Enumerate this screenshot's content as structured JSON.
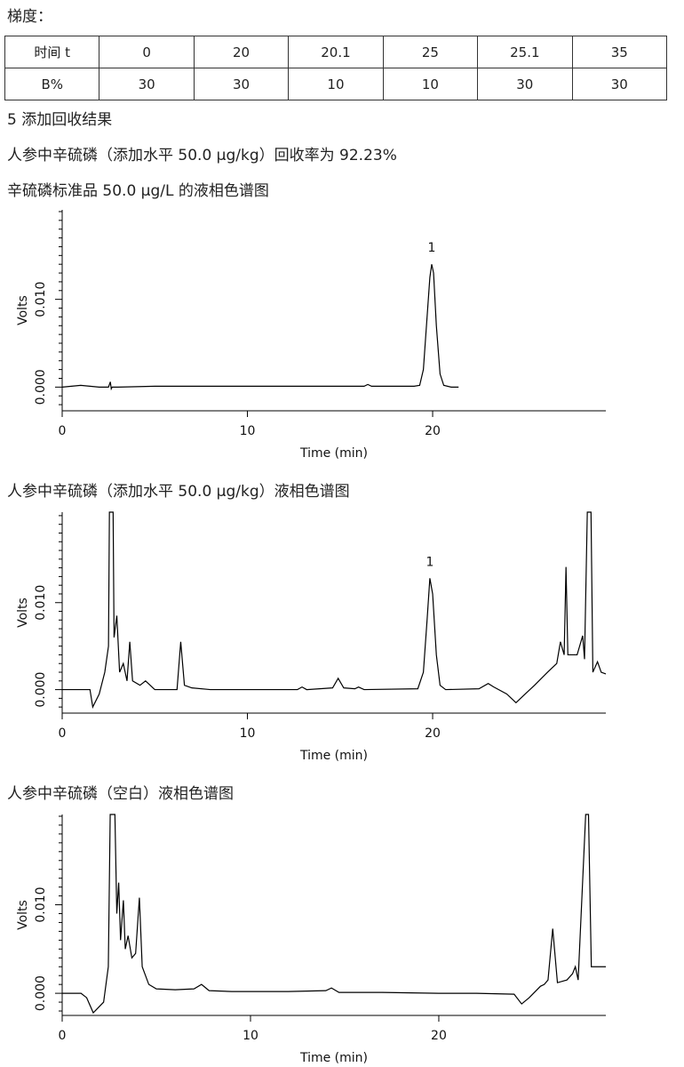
{
  "heading": "梯度：",
  "table": {
    "rows": [
      [
        "时间 t",
        "0",
        "20",
        "20.1",
        "25",
        "25.1",
        "35"
      ],
      [
        "B%",
        "30",
        "30",
        "10",
        "10",
        "30",
        "30"
      ]
    ]
  },
  "section": "5 添加回收结果",
  "paragraph": "人参中辛硫磷（添加水平 50.0 μg/kg）回收率为 92.23%",
  "chart_data": [
    {
      "type": "line",
      "title": "辛硫磷标准品 50.0 μg/L 的液相色谱图",
      "xlabel": "Time (min)",
      "ylabel": "Volts",
      "color": "#000000",
      "xlim": [
        0,
        29.35
      ],
      "xticks": [
        0,
        10,
        20
      ],
      "ylim": [
        -0.0027,
        0.0202
      ],
      "yticks": [
        {
          "value": 0,
          "label": "0.000"
        },
        {
          "value": 0.01,
          "label": "0.010"
        }
      ],
      "yminorticks": [
        -0.002,
        -0.001,
        0.001,
        0.002,
        0.003,
        0.004,
        0.005,
        0.006,
        0.007,
        0.008,
        0.009,
        0.011,
        0.012,
        0.013,
        0.014,
        0.015,
        0.016,
        0.017,
        0.018,
        0.019,
        0.02
      ],
      "x": [
        0,
        0.5,
        1,
        1.5,
        2,
        2.5,
        2.6,
        2.65,
        2.7,
        3,
        5,
        10,
        15,
        16.3,
        16.5,
        16.7,
        19,
        19.3,
        19.5,
        19.7,
        19.85,
        19.95,
        20.05,
        20.2,
        20.4,
        20.6,
        21,
        21.4
      ],
      "values": [
        0,
        0.0001,
        0.0002,
        0.0001,
        0,
        0,
        0.0006,
        -0.0002,
        0,
        0,
        0.0001,
        0.0001,
        0.0001,
        0.0001,
        0.0003,
        0.0001,
        0.0001,
        0.0002,
        0.002,
        0.008,
        0.0125,
        0.014,
        0.013,
        0.007,
        0.0015,
        0.0002,
        0,
        0
      ],
      "annotations": [
        {
          "text": "1",
          "x": 19.95,
          "y": 0.014
        }
      ]
    },
    {
      "type": "line",
      "title": "人参中辛硫磷（添加水平 50.0 μg/kg）液相色谱图",
      "xlabel": "Time (min)",
      "ylabel": "Volts",
      "color": "#000000",
      "xlim": [
        0,
        29.35
      ],
      "xticks": [
        0,
        10,
        20
      ],
      "ylim": [
        -0.0027,
        0.0204
      ],
      "yticks": [
        {
          "value": 0,
          "label": "0.000"
        },
        {
          "value": 0.01,
          "label": "0.010"
        }
      ],
      "yminorticks": [
        -0.002,
        -0.001,
        0.001,
        0.002,
        0.003,
        0.004,
        0.005,
        0.006,
        0.007,
        0.008,
        0.009,
        0.011,
        0.012,
        0.013,
        0.014,
        0.015,
        0.016,
        0.017,
        0.018,
        0.019,
        0.02
      ],
      "x": [
        0,
        1.5,
        1.65,
        2.0,
        2.3,
        2.5,
        2.55,
        2.75,
        2.8,
        2.95,
        3.1,
        3.3,
        3.5,
        3.65,
        3.8,
        4.2,
        4.5,
        5,
        6.2,
        6.4,
        6.6,
        7,
        8,
        12.7,
        12.95,
        13.2,
        14.6,
        14.9,
        15.2,
        15.8,
        16,
        16.3,
        19.2,
        19.5,
        19.7,
        19.85,
        20,
        20.2,
        20.4,
        20.7,
        22.5,
        23,
        23.3,
        24,
        24.5,
        25,
        25.5,
        26.2,
        26.7,
        26.9,
        27.1,
        27.2,
        27.3,
        27.8,
        28.1,
        28.2,
        28.35,
        28.55,
        28.65,
        28.9,
        29.1,
        29.35
      ],
      "values": [
        0,
        0,
        -0.002,
        -0.0005,
        0.002,
        0.005,
        0.0204,
        0.0204,
        0.006,
        0.0085,
        0.002,
        0.003,
        0.001,
        0.0055,
        0.001,
        0.0005,
        0.001,
        0,
        0,
        0.0055,
        0.0005,
        0.0002,
        0,
        0,
        0.0003,
        0,
        0.0002,
        0.0013,
        0.0002,
        0.0001,
        0.0003,
        0,
        0.0001,
        0.002,
        0.008,
        0.0128,
        0.011,
        0.004,
        0.0005,
        0,
        0.0001,
        0.0007,
        0.0003,
        -0.0005,
        -0.0015,
        -0.0005,
        0.0005,
        0.002,
        0.003,
        0.0055,
        0.004,
        0.0141,
        0.004,
        0.004,
        0.0062,
        0.0035,
        0.0204,
        0.0204,
        0.002,
        0.0032,
        0.002,
        0.0018
      ],
      "annotations": [
        {
          "text": "1",
          "x": 19.85,
          "y": 0.0128
        }
      ]
    },
    {
      "type": "line",
      "title": "人参中辛硫磷（空白）液相色谱图",
      "xlabel": "Time (min)",
      "ylabel": "Volts",
      "color": "#000000",
      "xlim": [
        0,
        28.87
      ],
      "xticks": [
        0,
        10,
        20
      ],
      "ylim": [
        -0.0025,
        0.0202
      ],
      "yticks": [
        {
          "value": 0,
          "label": "0.000"
        },
        {
          "value": 0.01,
          "label": "0.010"
        }
      ],
      "yminorticks": [
        -0.002,
        -0.001,
        0.001,
        0.002,
        0.003,
        0.004,
        0.005,
        0.006,
        0.007,
        0.008,
        0.009,
        0.011,
        0.012,
        0.013,
        0.014,
        0.015,
        0.016,
        0.017,
        0.018,
        0.019,
        0.02
      ],
      "x": [
        0,
        1,
        1.3,
        1.65,
        2.2,
        2.45,
        2.55,
        2.8,
        2.9,
        3.0,
        3.1,
        3.25,
        3.35,
        3.5,
        3.7,
        3.9,
        4.1,
        4.25,
        4.6,
        5,
        6,
        7,
        7.4,
        7.8,
        9,
        12,
        14,
        14.3,
        14.7,
        17,
        20,
        22,
        24,
        24.4,
        24.8,
        25.4,
        25.6,
        25.8,
        26.05,
        26.3,
        26.8,
        27.1,
        27.25,
        27.4,
        27.8,
        27.95,
        28.1,
        28.4,
        28.87
      ],
      "values": [
        0,
        0,
        -0.0005,
        -0.0022,
        -0.001,
        0.003,
        0.0202,
        0.0202,
        0.009,
        0.0125,
        0.006,
        0.0105,
        0.005,
        0.0065,
        0.004,
        0.0045,
        0.0108,
        0.003,
        0.001,
        0.0005,
        0.0004,
        0.0005,
        0.001,
        0.0003,
        0.0002,
        0.0002,
        0.0003,
        0.0006,
        0.0001,
        0.0001,
        0,
        0,
        -0.0001,
        -0.0012,
        -0.0005,
        0.0008,
        0.001,
        0.0015,
        0.0073,
        0.0012,
        0.0015,
        0.0022,
        0.003,
        0.0015,
        0.0202,
        0.0202,
        0.003,
        0.003,
        0.003
      ],
      "annotations": []
    }
  ]
}
